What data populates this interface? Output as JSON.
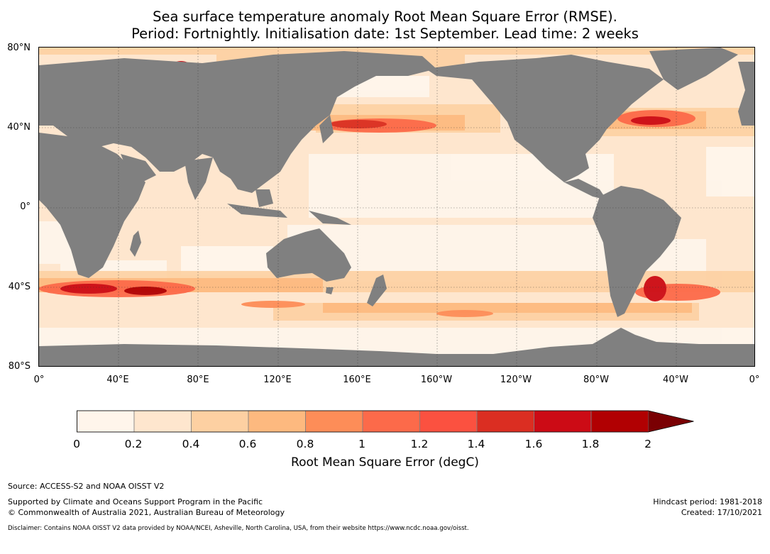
{
  "title": {
    "line1": "Sea surface temperature anomaly Root Mean Square Error (RMSE).",
    "line2": "Period: Fortnightly. Initialisation date: 1st September. Lead time: 2 weeks"
  },
  "map": {
    "lat_labels": [
      "80°N",
      "40°N",
      "0°",
      "40°S",
      "80°S"
    ],
    "lon_labels": [
      "0°",
      "40°E",
      "80°E",
      "120°E",
      "160°E",
      "160°W",
      "120°W",
      "80°W",
      "40°W",
      "0°"
    ],
    "land_color": "#808080",
    "gridline_style": "dotted",
    "projection": "equirectangular, 0° to 360° longitude, 80°S to 80°N"
  },
  "colorbar": {
    "label": "Root Mean Square Error (degC)",
    "ticks": [
      "0",
      "0.2",
      "0.4",
      "0.6",
      "0.8",
      "1",
      "1.2",
      "1.4",
      "1.6",
      "1.8",
      "2"
    ],
    "colors": [
      "#fff5eb",
      "#fee6ce",
      "#fdd0a2",
      "#fdb97f",
      "#fd8d58",
      "#fc6a4a",
      "#fb5140",
      "#db2e22",
      "#cc0b15",
      "#b10002"
    ],
    "extend_color": "#7a0003",
    "extend": "max"
  },
  "footer": {
    "source": "Source: ACCESS-S2 and NOAA OISST V2",
    "support": "Supported by Climate and Oceans Support Program in the Pacific",
    "copyright": "© Commonwealth of Australia 2021, Australian Bureau of Meteorology",
    "hindcast": "Hindcast period: 1981-2018",
    "created": "Created: 17/10/2021",
    "disclaimer": "Disclaimer: Contains NOAA OISST V2 data provided by NOAA/NCEI, Asheville, North Carolina, USA, from their website https://www.ncdc.noaa.gov/oisst."
  }
}
